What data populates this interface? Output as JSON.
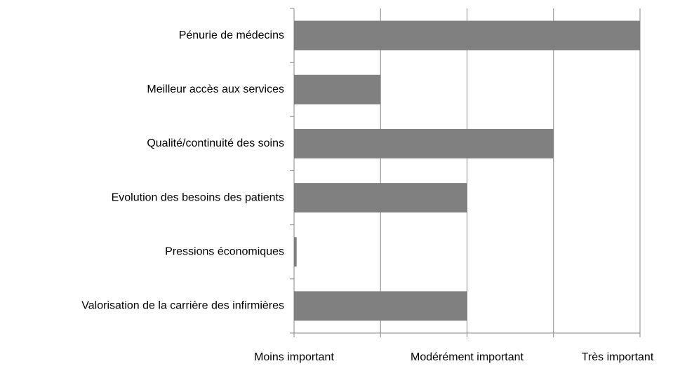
{
  "chart_data": {
    "type": "bar",
    "orientation": "horizontal",
    "categories": [
      "Pénurie de médecins",
      "Meilleur accès aux services",
      "Qualité/continuité des soins",
      "Evolution des besoins des patients",
      "Pressions économiques",
      "Valorisation de la carrière des infirmières"
    ],
    "values": [
      4,
      1,
      3,
      2,
      0.03,
      2
    ],
    "color": "#808080",
    "xlim": [
      0,
      4
    ],
    "xticks": [
      {
        "value": 0,
        "label": "Moins important"
      },
      {
        "value": 1,
        "label": null
      },
      {
        "value": 2,
        "label": "Modérément important"
      },
      {
        "value": 3,
        "label": null
      },
      {
        "value": 4,
        "label": "Très important"
      }
    ],
    "grid": true
  }
}
